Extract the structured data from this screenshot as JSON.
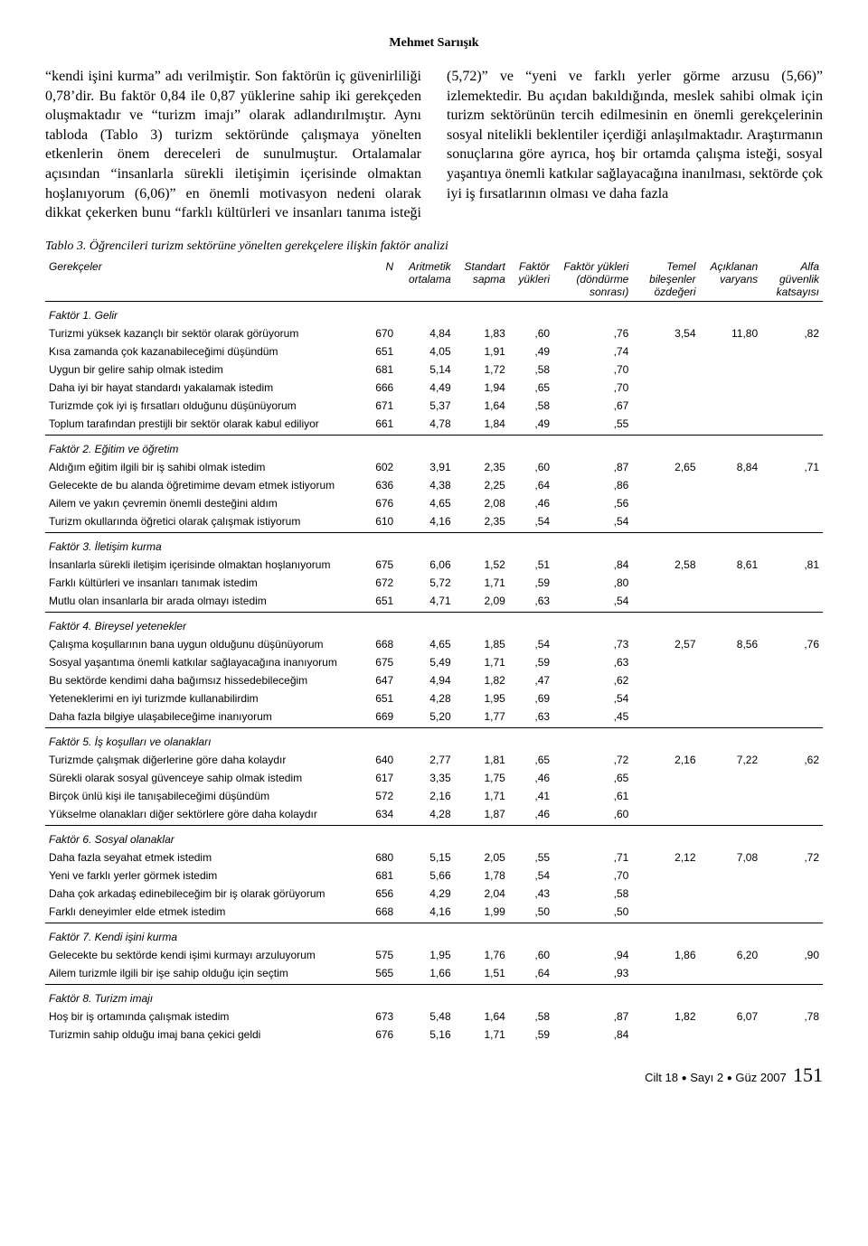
{
  "author": "Mehmet Sarıışık",
  "body_text": "“kendi işini kurma” adı verilmiştir. Son faktörün iç güvenirliliği 0,78’dir. Bu faktör 0,84 ile 0,87 yüklerine sahip iki gerekçeden oluşmaktadır ve “turizm imajı” olarak adlandırılmıştır. Aynı tabloda (Tablo 3) turizm sektöründe çalışmaya yönelten etkenlerin önem dereceleri de sunulmuştur. Ortalamalar açısından “insanlarla sürekli iletişimin içerisinde olmaktan hoşlanıyorum (6,06)” en önemli motivasyon nedeni olarak dikkat çekerken bunu “farklı kültürleri ve insanları tanıma isteği (5,72)” ve “yeni ve farklı yerler görme arzusu (5,66)” izlemektedir. Bu açıdan bakıldığında, meslek sahibi olmak için turizm sektörünün tercih edilmesinin en önemli gerekçelerinin sosyal nitelikli beklentiler içerdiği anlaşılmaktadır. Araştırmanın sonuçlarına göre ayrıca, hoş bir ortamda çalışma isteği, sosyal yaşantıya önemli katkılar sağlayacağına inanılması, sektörde çok iyi iş fırsatlarının olması ve daha fazla",
  "table_caption": "Tablo 3. Öğrencileri turizm sektörüne yönelten gerekçelere ilişkin faktör analizi",
  "headers": {
    "c0": "Gerekçeler",
    "c1": "N",
    "c2": "Aritmetik ortalama",
    "c3": "Standart sapma",
    "c4": "Faktör yükleri",
    "c5": "Faktör yükleri (döndürme sonrası)",
    "c6": "Temel bileşenler özdeğeri",
    "c7": "Açıklanan varyans",
    "c8": "Alfa güvenlik katsayısı"
  },
  "factors": [
    {
      "title": "Faktör 1. Gelir",
      "rows": [
        {
          "l": "Turizmi yüksek kazançlı bir sektör olarak görüyorum",
          "n": "670",
          "m": "4,84",
          "s": "1,83",
          "f1": ",60",
          "f2": ",76",
          "e": "3,54",
          "v": "11,80",
          "a": ",82"
        },
        {
          "l": "Kısa zamanda çok kazanabileceğimi düşündüm",
          "n": "651",
          "m": "4,05",
          "s": "1,91",
          "f1": ",49",
          "f2": ",74",
          "e": "",
          "v": "",
          "a": ""
        },
        {
          "l": "Uygun bir gelire sahip olmak istedim",
          "n": "681",
          "m": "5,14",
          "s": "1,72",
          "f1": ",58",
          "f2": ",70",
          "e": "",
          "v": "",
          "a": ""
        },
        {
          "l": "Daha iyi bir hayat standardı yakalamak istedim",
          "n": "666",
          "m": "4,49",
          "s": "1,94",
          "f1": ",65",
          "f2": ",70",
          "e": "",
          "v": "",
          "a": ""
        },
        {
          "l": "Turizmde çok iyi iş fırsatları olduğunu düşünüyorum",
          "n": "671",
          "m": "5,37",
          "s": "1,64",
          "f1": ",58",
          "f2": ",67",
          "e": "",
          "v": "",
          "a": ""
        },
        {
          "l": "Toplum tarafından prestijli bir sektör olarak kabul ediliyor",
          "n": "661",
          "m": "4,78",
          "s": "1,84",
          "f1": ",49",
          "f2": ",55",
          "e": "",
          "v": "",
          "a": ""
        }
      ]
    },
    {
      "title": "Faktör 2. Eğitim ve öğretim",
      "rows": [
        {
          "l": "Aldığım eğitim ilgili bir iş sahibi olmak istedim",
          "n": "602",
          "m": "3,91",
          "s": "2,35",
          "f1": ",60",
          "f2": ",87",
          "e": "2,65",
          "v": "8,84",
          "a": ",71"
        },
        {
          "l": "Gelecekte de bu alanda öğretimime devam etmek istiyorum",
          "n": "636",
          "m": "4,38",
          "s": "2,25",
          "f1": ",64",
          "f2": ",86",
          "e": "",
          "v": "",
          "a": ""
        },
        {
          "l": "Ailem ve yakın çevremin önemli desteğini aldım",
          "n": "676",
          "m": "4,65",
          "s": "2,08",
          "f1": ",46",
          "f2": ",56",
          "e": "",
          "v": "",
          "a": ""
        },
        {
          "l": "Turizm okullarında öğretici olarak çalışmak istiyorum",
          "n": "610",
          "m": "4,16",
          "s": "2,35",
          "f1": ",54",
          "f2": ",54",
          "e": "",
          "v": "",
          "a": ""
        }
      ]
    },
    {
      "title": "Faktör 3. İletişim kurma",
      "rows": [
        {
          "l": "İnsanlarla sürekli iletişim içerisinde olmaktan hoşlanıyorum",
          "n": "675",
          "m": "6,06",
          "s": "1,52",
          "f1": ",51",
          "f2": ",84",
          "e": "2,58",
          "v": "8,61",
          "a": ",81"
        },
        {
          "l": "Farklı kültürleri ve insanları tanımak istedim",
          "n": "672",
          "m": "5,72",
          "s": "1,71",
          "f1": ",59",
          "f2": ",80",
          "e": "",
          "v": "",
          "a": ""
        },
        {
          "l": "Mutlu olan insanlarla bir arada olmayı istedim",
          "n": "651",
          "m": "4,71",
          "s": "2,09",
          "f1": ",63",
          "f2": ",54",
          "e": "",
          "v": "",
          "a": ""
        }
      ]
    },
    {
      "title": "Faktör 4. Bireysel yetenekler",
      "rows": [
        {
          "l": "Çalışma koşullarının bana uygun olduğunu düşünüyorum",
          "n": "668",
          "m": "4,65",
          "s": "1,85",
          "f1": ",54",
          "f2": ",73",
          "e": "2,57",
          "v": "8,56",
          "a": ",76"
        },
        {
          "l": "Sosyal yaşantıma önemli katkılar sağlayacağına inanıyorum",
          "n": "675",
          "m": "5,49",
          "s": "1,71",
          "f1": ",59",
          "f2": ",63",
          "e": "",
          "v": "",
          "a": ""
        },
        {
          "l": "Bu sektörde kendimi daha bağımsız hissedebileceğim",
          "n": "647",
          "m": "4,94",
          "s": "1,82",
          "f1": ",47",
          "f2": ",62",
          "e": "",
          "v": "",
          "a": ""
        },
        {
          "l": "Yeteneklerimi en iyi turizmde kullanabilirdim",
          "n": "651",
          "m": "4,28",
          "s": "1,95",
          "f1": ",69",
          "f2": ",54",
          "e": "",
          "v": "",
          "a": ""
        },
        {
          "l": "Daha fazla bilgiye ulaşabileceğime inanıyorum",
          "n": "669",
          "m": "5,20",
          "s": "1,77",
          "f1": ",63",
          "f2": ",45",
          "e": "",
          "v": "",
          "a": ""
        }
      ]
    },
    {
      "title": "Faktör 5. İş koşulları ve olanakları",
      "rows": [
        {
          "l": "Turizmde çalışmak diğerlerine göre daha kolaydır",
          "n": "640",
          "m": "2,77",
          "s": "1,81",
          "f1": ",65",
          "f2": ",72",
          "e": "2,16",
          "v": "7,22",
          "a": ",62"
        },
        {
          "l": "Sürekli olarak sosyal güvenceye sahip olmak istedim",
          "n": "617",
          "m": "3,35",
          "s": "1,75",
          "f1": ",46",
          "f2": ",65",
          "e": "",
          "v": "",
          "a": ""
        },
        {
          "l": "Birçok ünlü kişi ile tanışabileceğimi düşündüm",
          "n": "572",
          "m": "2,16",
          "s": "1,71",
          "f1": ",41",
          "f2": ",61",
          "e": "",
          "v": "",
          "a": ""
        },
        {
          "l": "Yükselme olanakları diğer sektörlere göre daha kolaydır",
          "n": "634",
          "m": "4,28",
          "s": "1,87",
          "f1": ",46",
          "f2": ",60",
          "e": "",
          "v": "",
          "a": ""
        }
      ]
    },
    {
      "title": "Faktör 6. Sosyal olanaklar",
      "rows": [
        {
          "l": "Daha fazla seyahat etmek istedim",
          "n": "680",
          "m": "5,15",
          "s": "2,05",
          "f1": ",55",
          "f2": ",71",
          "e": "2,12",
          "v": "7,08",
          "a": ",72"
        },
        {
          "l": "Yeni ve farklı yerler görmek istedim",
          "n": "681",
          "m": "5,66",
          "s": "1,78",
          "f1": ",54",
          "f2": ",70",
          "e": "",
          "v": "",
          "a": ""
        },
        {
          "l": "Daha çok arkadaş edinebileceğim bir iş olarak görüyorum",
          "n": "656",
          "m": "4,29",
          "s": "2,04",
          "f1": ",43",
          "f2": ",58",
          "e": "",
          "v": "",
          "a": ""
        },
        {
          "l": "Farklı deneyimler elde etmek istedim",
          "n": "668",
          "m": "4,16",
          "s": "1,99",
          "f1": ",50",
          "f2": ",50",
          "e": "",
          "v": "",
          "a": ""
        }
      ]
    },
    {
      "title": "Faktör 7. Kendi işini kurma",
      "rows": [
        {
          "l": "Gelecekte bu sektörde kendi işimi kurmayı arzuluyorum",
          "n": "575",
          "m": "1,95",
          "s": "1,76",
          "f1": ",60",
          "f2": ",94",
          "e": "1,86",
          "v": "6,20",
          "a": ",90"
        },
        {
          "l": "Ailem turizmle ilgili bir işe sahip olduğu için seçtim",
          "n": "565",
          "m": "1,66",
          "s": "1,51",
          "f1": ",64",
          "f2": ",93",
          "e": "",
          "v": "",
          "a": ""
        }
      ]
    },
    {
      "title": "Faktör 8. Turizm imajı",
      "rows": [
        {
          "l": "Hoş bir iş ortamında çalışmak istedim",
          "n": "673",
          "m": "5,48",
          "s": "1,64",
          "f1": ",58",
          "f2": ",87",
          "e": "1,82",
          "v": "6,07",
          "a": ",78"
        },
        {
          "l": "Turizmin sahip olduğu imaj bana çekici geldi",
          "n": "676",
          "m": "5,16",
          "s": "1,71",
          "f1": ",59",
          "f2": ",84",
          "e": "",
          "v": "",
          "a": ""
        }
      ]
    }
  ],
  "footer": {
    "vol": "Cilt 18",
    "iss": "Sayı 2",
    "season": "Güz 2007",
    "page": "151"
  }
}
